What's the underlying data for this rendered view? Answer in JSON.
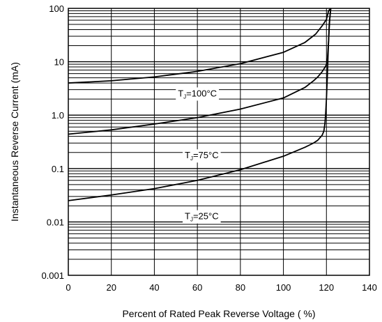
{
  "chart_data": {
    "type": "line",
    "title": "",
    "xlabel": "Percent of Rated Peak Reverse Voltage ( %)",
    "ylabel": "Instantaneous Reverse Current (mA)",
    "xlim": [
      0,
      140
    ],
    "ylim": [
      0.001,
      100
    ],
    "yscale": "log",
    "grid": true,
    "x_ticks": [
      "0",
      "20",
      "40",
      "60",
      "80",
      "100",
      "120",
      "140"
    ],
    "y_ticks": [
      "0.001",
      "0.01",
      "0.1",
      "1.0",
      "10",
      "100"
    ],
    "series": [
      {
        "name": "T_J=100°C",
        "x": [
          0,
          20,
          40,
          60,
          80,
          100,
          110,
          115,
          118,
          120,
          121,
          122
        ],
        "y": [
          4.0,
          4.4,
          5.2,
          6.6,
          9.2,
          15,
          23,
          33,
          47,
          62,
          90,
          130
        ]
      },
      {
        "name": "T_J=75°C",
        "x": [
          0,
          20,
          40,
          60,
          80,
          100,
          110,
          114,
          116,
          118,
          119,
          120,
          120.5,
          121,
          121.5,
          122
        ],
        "y": [
          0.44,
          0.53,
          0.68,
          0.9,
          1.3,
          2.1,
          3.3,
          4.4,
          5.2,
          6.5,
          7.5,
          8.8,
          12,
          25,
          60,
          130
        ]
      },
      {
        "name": "T_J=25°C",
        "x": [
          0,
          20,
          40,
          60,
          80,
          100,
          110,
          114,
          116,
          118,
          118.8,
          119.3,
          119.6,
          120,
          120.4,
          120.8,
          121.3,
          122
        ],
        "y": [
          0.025,
          0.032,
          0.042,
          0.06,
          0.095,
          0.17,
          0.25,
          0.3,
          0.34,
          0.42,
          0.5,
          0.7,
          1.0,
          2.0,
          5.0,
          15,
          50,
          130
        ]
      }
    ],
    "annotations": [
      {
        "text": "T",
        "sub": "J",
        "rest": "=100°C",
        "x": 60,
        "y": 2.6
      },
      {
        "text": "T",
        "sub": "J",
        "rest": "=75°C",
        "x": 62,
        "y": 0.18
      },
      {
        "text": "T",
        "sub": "J",
        "rest": "=25°C",
        "x": 62,
        "y": 0.013
      }
    ]
  }
}
